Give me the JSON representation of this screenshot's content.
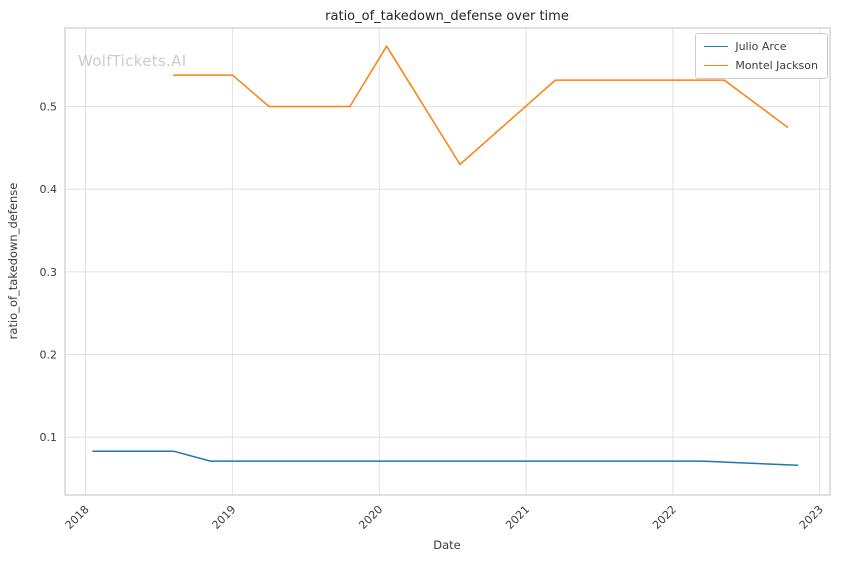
{
  "watermark": "WolfTickets.AI",
  "chart_data": {
    "type": "line",
    "title": "ratio_of_takedown_defense over time",
    "xlabel": "Date",
    "ylabel": "ratio_of_takedown_defense",
    "xlim": [
      2017.86,
      2023.07
    ],
    "ylim": [
      0.03,
      0.595
    ],
    "grid": true,
    "legend_position": "upper right",
    "frame_color": "#cccccc",
    "grid_color": "#e0e0e0",
    "x_ticks": [
      {
        "value": 2018,
        "label": "2018"
      },
      {
        "value": 2019,
        "label": "2019"
      },
      {
        "value": 2020,
        "label": "2020"
      },
      {
        "value": 2021,
        "label": "2021"
      },
      {
        "value": 2022,
        "label": "2022"
      },
      {
        "value": 2023,
        "label": "2023"
      }
    ],
    "y_ticks": [
      {
        "value": 0.1,
        "label": "0.1"
      },
      {
        "value": 0.2,
        "label": "0.2"
      },
      {
        "value": 0.3,
        "label": "0.3"
      },
      {
        "value": 0.4,
        "label": "0.4"
      },
      {
        "value": 0.5,
        "label": "0.5"
      }
    ],
    "series": [
      {
        "name": "Julio Arce",
        "color": "#1f77b4",
        "points": [
          [
            2018.05,
            0.083
          ],
          [
            2018.6,
            0.083
          ],
          [
            2018.85,
            0.071
          ],
          [
            2019.5,
            0.071
          ],
          [
            2020.5,
            0.071
          ],
          [
            2021.5,
            0.071
          ],
          [
            2022.2,
            0.071
          ],
          [
            2022.45,
            0.069
          ],
          [
            2022.85,
            0.066
          ]
        ]
      },
      {
        "name": "Montel Jackson",
        "color": "#ff7f0e",
        "points": [
          [
            2018.6,
            0.538
          ],
          [
            2019.0,
            0.538
          ],
          [
            2019.25,
            0.5
          ],
          [
            2019.8,
            0.5
          ],
          [
            2020.05,
            0.573
          ],
          [
            2020.55,
            0.43
          ],
          [
            2021.2,
            0.532
          ],
          [
            2021.75,
            0.532
          ],
          [
            2022.35,
            0.532
          ],
          [
            2022.78,
            0.475
          ]
        ]
      }
    ]
  }
}
